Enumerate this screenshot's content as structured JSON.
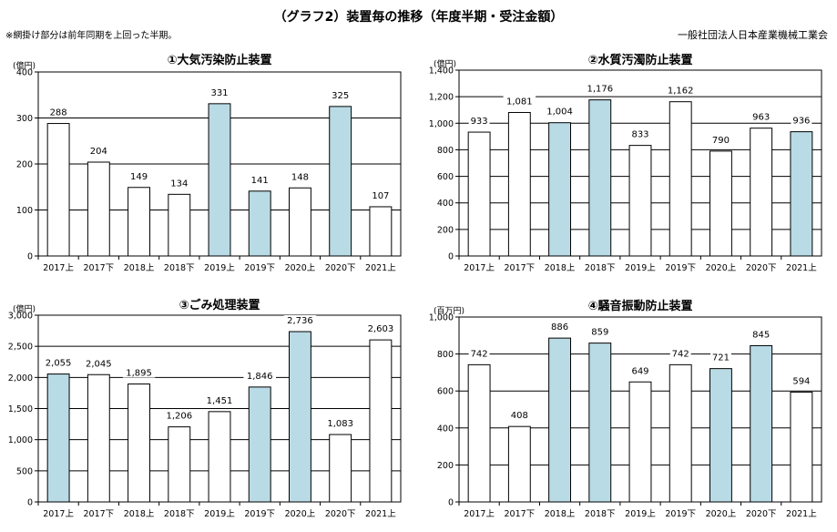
{
  "header": {
    "title": "（グラフ2）装置毎の推移（年度半期・受注金額）",
    "note": "※網掛け部分は前年同期を上回った半期。",
    "organization": "一般社団法人日本産業機械工業会"
  },
  "colors": {
    "above_prior_year_fill": "#b9dbe6",
    "default_fill": "#ffffff",
    "bar_stroke": "#000000"
  },
  "chart_data": [
    {
      "type": "bar",
      "title": "①大気汚染防止装置",
      "unit": "(億円)",
      "categories": [
        "2017上",
        "2017下",
        "2018上",
        "2018下",
        "2019上",
        "2019下",
        "2020上",
        "2020下",
        "2021上"
      ],
      "values": [
        288,
        204,
        149,
        134,
        331,
        141,
        148,
        325,
        107
      ],
      "value_labels": [
        "288",
        "204",
        "149",
        "134",
        "331",
        "141",
        "148",
        "325",
        "107"
      ],
      "highlighted": [
        false,
        false,
        false,
        false,
        true,
        true,
        false,
        true,
        false
      ],
      "ylim": [
        0,
        400
      ],
      "yticks": [
        0,
        100,
        200,
        300,
        400
      ],
      "ytick_labels": [
        "0",
        "100",
        "200",
        "300",
        "400"
      ],
      "grid": true
    },
    {
      "type": "bar",
      "title": "②水質汚濁防止装置",
      "unit": "(億円)",
      "categories": [
        "2017上",
        "2017下",
        "2018上",
        "2018下",
        "2019上",
        "2019下",
        "2020上",
        "2020下",
        "2021上"
      ],
      "values": [
        933,
        1081,
        1004,
        1176,
        833,
        1162,
        790,
        963,
        936
      ],
      "value_labels": [
        "933",
        "1,081",
        "1,004",
        "1,176",
        "833",
        "1,162",
        "790",
        "963",
        "936"
      ],
      "highlighted": [
        false,
        false,
        true,
        true,
        false,
        false,
        false,
        false,
        true
      ],
      "ylim": [
        0,
        1400
      ],
      "yticks": [
        0,
        200,
        400,
        600,
        800,
        1000,
        1200,
        1400
      ],
      "ytick_labels": [
        "0",
        "200",
        "400",
        "600",
        "800",
        "1,000",
        "1,200",
        "1,400"
      ],
      "grid": true
    },
    {
      "type": "bar",
      "title": "③ごみ処理装置",
      "unit": "(億円)",
      "categories": [
        "2017上",
        "2017下",
        "2018上",
        "2018下",
        "2019上",
        "2019下",
        "2020上",
        "2020下",
        "2021上"
      ],
      "values": [
        2055,
        2045,
        1895,
        1206,
        1451,
        1846,
        2736,
        1083,
        2603
      ],
      "value_labels": [
        "2,055",
        "2,045",
        "1,895",
        "1,206",
        "1,451",
        "1,846",
        "2,736",
        "1,083",
        "2,603"
      ],
      "highlighted": [
        true,
        false,
        false,
        false,
        false,
        true,
        true,
        false,
        false
      ],
      "ylim": [
        0,
        3000
      ],
      "yticks": [
        0,
        500,
        1000,
        1500,
        2000,
        2500,
        3000
      ],
      "ytick_labels": [
        "0",
        "500",
        "1,000",
        "1,500",
        "2,000",
        "2,500",
        "3,000"
      ],
      "grid": true
    },
    {
      "type": "bar",
      "title": "④騒音振動防止装置",
      "unit": "(百万円)",
      "categories": [
        "2017上",
        "2017下",
        "2018上",
        "2018下",
        "2019上",
        "2019下",
        "2020上",
        "2020下",
        "2021上"
      ],
      "values": [
        742,
        408,
        886,
        859,
        649,
        742,
        721,
        845,
        594
      ],
      "value_labels": [
        "742",
        "408",
        "886",
        "859",
        "649",
        "742",
        "721",
        "845",
        "594"
      ],
      "highlighted": [
        false,
        false,
        true,
        true,
        false,
        false,
        true,
        true,
        false
      ],
      "ylim": [
        0,
        1000
      ],
      "yticks": [
        0,
        200,
        400,
        600,
        800,
        1000
      ],
      "ytick_labels": [
        "0",
        "200",
        "400",
        "600",
        "800",
        "1,000"
      ],
      "grid": true
    }
  ]
}
